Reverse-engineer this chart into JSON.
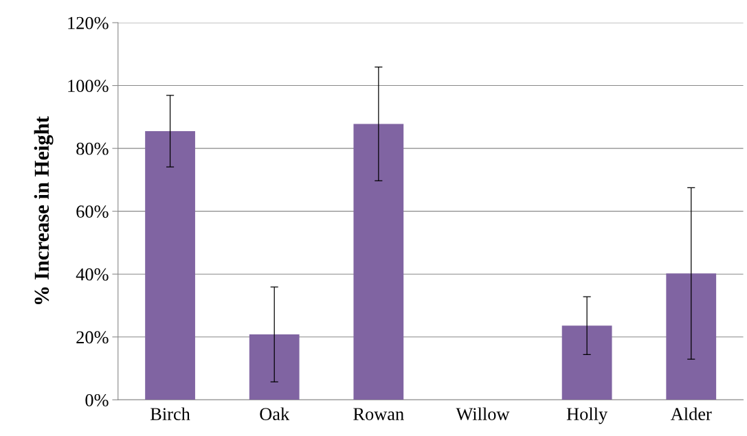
{
  "chart_data": {
    "type": "bar",
    "ylabel": "% Increase in Height",
    "categories": [
      "Birch",
      "Oak",
      "Rowan",
      "Willow",
      "Holly",
      "Alder"
    ],
    "values": [
      85.5,
      20.8,
      87.8,
      0,
      23.6,
      40.2
    ],
    "errors": [
      11.4,
      15.1,
      18.1,
      null,
      9.2,
      27.3
    ],
    "color": "#8064a2",
    "ylim": [
      0,
      120
    ],
    "yticks": [
      {
        "value": 0,
        "label": "0%"
      },
      {
        "value": 20,
        "label": "20%"
      },
      {
        "value": 40,
        "label": "40%"
      },
      {
        "value": 60,
        "label": "60%"
      },
      {
        "value": 80,
        "label": "80%"
      },
      {
        "value": 100,
        "label": "100%"
      },
      {
        "value": 120,
        "label": "120%"
      }
    ],
    "grid": "y"
  }
}
